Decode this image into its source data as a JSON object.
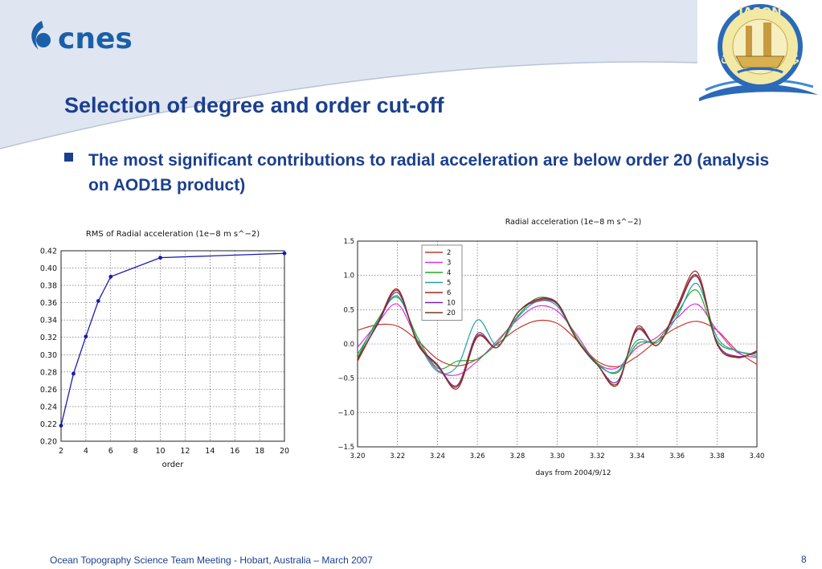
{
  "logo_left": {
    "text": "cnes"
  },
  "logo_right": {
    "text_top": "JASON",
    "text_left": "CNES",
    "text_right": "NASA"
  },
  "slide": {
    "title": "Selection of degree and order cut-off",
    "bullet": "The most significant contributions to radial acceleration are below order 20 (analysis on AOD1B product)",
    "footer": "Ocean Topography Science Team Meeting - Hobart, Australia – March 2007",
    "page_number": "8"
  },
  "colors": {
    "accent": "#1b3f8f",
    "header_bg": "#dfe6f1"
  },
  "chart_data": [
    {
      "type": "line",
      "title": "RMS of Radial acceleration (1e−8 m s^−2)",
      "xlabel": "order",
      "ylabel": "",
      "x": [
        2,
        3,
        4,
        5,
        6,
        10,
        20
      ],
      "series": [
        {
          "values": [
            0.218,
            0.278,
            0.321,
            0.362,
            0.39,
            0.412,
            0.417
          ],
          "color": "#1a1ab4"
        }
      ],
      "xlim": [
        2,
        20
      ],
      "ylim": [
        0.2,
        0.42
      ],
      "xticks": [
        "2",
        "4",
        "6",
        "8",
        "10",
        "12",
        "14",
        "16",
        "18",
        "20"
      ],
      "yticks": [
        "0.20",
        "0.22",
        "0.24",
        "0.26",
        "0.28",
        "0.30",
        "0.32",
        "0.34",
        "0.36",
        "0.38",
        "0.40",
        "0.42"
      ],
      "grid": true
    },
    {
      "type": "line",
      "title": "Radial acceleration (1e−8 m s^−2)",
      "xlabel": "days from 2004/9/12",
      "ylabel": "",
      "x": [
        3.2,
        3.21,
        3.22,
        3.23,
        3.24,
        3.25,
        3.26,
        3.27,
        3.28,
        3.29,
        3.3,
        3.31,
        3.32,
        3.33,
        3.34,
        3.35,
        3.36,
        3.37,
        3.38,
        3.39,
        3.4
      ],
      "series": [
        {
          "name": "2",
          "color": "#c8372d",
          "values": [
            0.2,
            0.28,
            0.26,
            0.05,
            -0.22,
            -0.32,
            -0.22,
            0.0,
            0.22,
            0.34,
            0.3,
            0.05,
            -0.25,
            -0.33,
            -0.18,
            0.05,
            0.24,
            0.33,
            0.2,
            -0.1,
            -0.3
          ]
        },
        {
          "name": "3",
          "color": "#e030e0",
          "values": [
            -0.05,
            0.3,
            0.58,
            0.05,
            -0.38,
            -0.45,
            -0.25,
            0.05,
            0.35,
            0.55,
            0.48,
            0.12,
            -0.28,
            -0.35,
            -0.05,
            0.1,
            0.38,
            0.58,
            0.2,
            -0.12,
            -0.2
          ]
        },
        {
          "name": "4",
          "color": "#22aa22",
          "values": [
            -0.2,
            0.35,
            0.68,
            0.1,
            -0.35,
            -0.25,
            -0.22,
            0.02,
            0.4,
            0.67,
            0.58,
            0.08,
            -0.28,
            -0.42,
            0.0,
            0.05,
            0.45,
            0.78,
            0.05,
            -0.1,
            -0.18
          ]
        },
        {
          "name": "5",
          "color": "#22a0a0",
          "values": [
            -0.15,
            0.32,
            0.7,
            0.05,
            -0.4,
            -0.32,
            0.35,
            -0.02,
            0.38,
            0.62,
            0.55,
            0.05,
            -0.3,
            -0.4,
            0.05,
            0.02,
            0.4,
            0.88,
            0.1,
            -0.1,
            -0.15
          ]
        },
        {
          "name": "6",
          "color": "#aa2222",
          "values": [
            -0.25,
            0.3,
            0.8,
            0.0,
            -0.3,
            -0.65,
            0.1,
            -0.05,
            0.45,
            0.65,
            0.6,
            0.05,
            -0.3,
            -0.6,
            0.25,
            -0.02,
            0.55,
            1.05,
            0.0,
            -0.2,
            -0.1
          ]
        },
        {
          "name": "10",
          "color": "#7a22aa",
          "values": [
            -0.22,
            0.28,
            0.75,
            0.02,
            -0.3,
            -0.6,
            0.15,
            -0.05,
            0.45,
            0.62,
            0.58,
            0.05,
            -0.3,
            -0.55,
            0.2,
            -0.02,
            0.5,
            0.98,
            0.02,
            -0.18,
            -0.12
          ]
        },
        {
          "name": "20",
          "color": "#7a3a1a",
          "values": [
            -0.22,
            0.3,
            0.78,
            0.02,
            -0.32,
            -0.62,
            0.12,
            -0.05,
            0.45,
            0.64,
            0.59,
            0.05,
            -0.3,
            -0.58,
            0.22,
            -0.02,
            0.52,
            1.0,
            0.0,
            -0.19,
            -0.11
          ]
        }
      ],
      "xlim": [
        3.2,
        3.4
      ],
      "ylim": [
        -1.5,
        1.5
      ],
      "xticks": [
        "3.20",
        "3.22",
        "3.24",
        "3.26",
        "3.28",
        "3.30",
        "3.32",
        "3.34",
        "3.36",
        "3.38",
        "3.40"
      ],
      "yticks": [
        "−1.5",
        "−1.0",
        "−0.5",
        "0.0",
        "0.5",
        "1.0",
        "1.5"
      ],
      "yticks_values": [
        -1.5,
        -1.0,
        -0.5,
        0.0,
        0.5,
        1.0,
        1.5
      ],
      "grid": true,
      "legend": "top-left"
    }
  ]
}
